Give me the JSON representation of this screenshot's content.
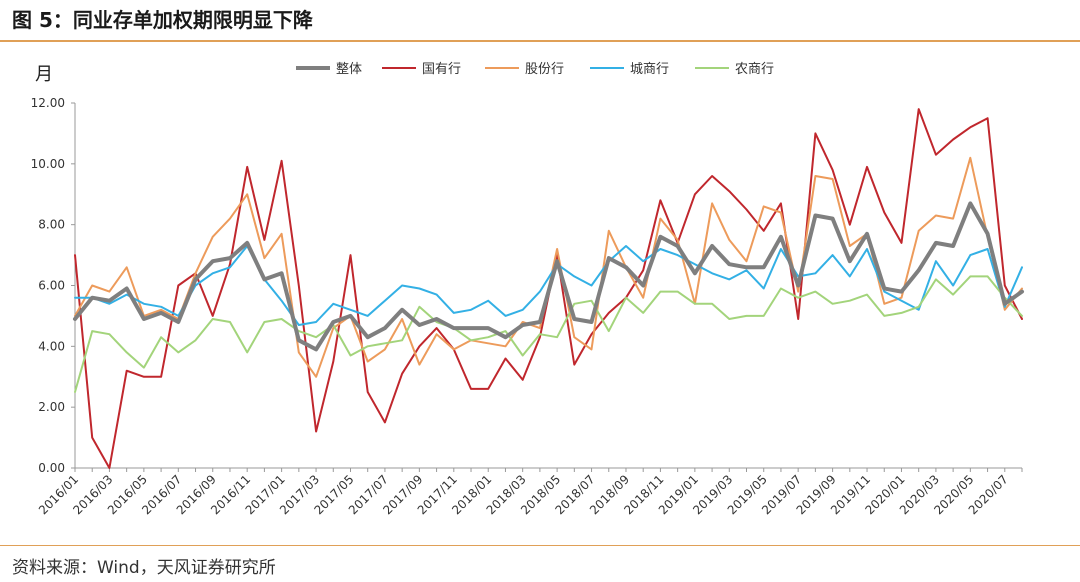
{
  "header": {
    "title": "图 5：同业存单加权期限明显下降"
  },
  "footer": {
    "source": "资料来源：Wind，天风证券研究所"
  },
  "chart_data": {
    "type": "line",
    "ylabel": "月",
    "ylim": [
      0,
      12
    ],
    "yticks": [
      "0.00",
      "2.00",
      "4.00",
      "6.00",
      "8.00",
      "10.00",
      "12.00"
    ],
    "grid": false,
    "legend": "top",
    "x": [
      "2016/01",
      "2016/02",
      "2016/03",
      "2016/04",
      "2016/05",
      "2016/06",
      "2016/07",
      "2016/08",
      "2016/09",
      "2016/10",
      "2016/11",
      "2016/12",
      "2017/01",
      "2017/02",
      "2017/03",
      "2017/04",
      "2017/05",
      "2017/06",
      "2017/07",
      "2017/08",
      "2017/09",
      "2017/10",
      "2017/11",
      "2017/12",
      "2018/01",
      "2018/02",
      "2018/03",
      "2018/04",
      "2018/05",
      "2018/06",
      "2018/07",
      "2018/08",
      "2018/09",
      "2018/10",
      "2018/11",
      "2018/12",
      "2019/01",
      "2019/02",
      "2019/03",
      "2019/04",
      "2019/05",
      "2019/06",
      "2019/07",
      "2019/08",
      "2019/09",
      "2019/10",
      "2019/11",
      "2019/12",
      "2020/01",
      "2020/02",
      "2020/03",
      "2020/04",
      "2020/05",
      "2020/06",
      "2020/07",
      "2020/08"
    ],
    "xtick_labels": [
      "2016/01",
      "2016/03",
      "2016/05",
      "2016/07",
      "2016/09",
      "2016/11",
      "2017/01",
      "2017/03",
      "2017/05",
      "2017/07",
      "2017/09",
      "2017/11",
      "2018/01",
      "2018/03",
      "2018/05",
      "2018/07",
      "2018/09",
      "2018/11",
      "2019/01",
      "2019/03",
      "2019/05",
      "2019/07",
      "2019/09",
      "2019/11",
      "2020/01",
      "2020/03",
      "2020/05",
      "2020/07"
    ],
    "series": [
      {
        "name": "整体",
        "color": "#7f7f7f",
        "width": 4,
        "values": [
          4.9,
          5.6,
          5.5,
          5.9,
          4.9,
          5.1,
          4.8,
          6.2,
          6.8,
          6.9,
          7.4,
          6.2,
          6.4,
          4.2,
          3.9,
          4.8,
          5.0,
          4.3,
          4.6,
          5.2,
          4.7,
          4.9,
          4.6,
          4.6,
          4.6,
          4.3,
          4.7,
          4.8,
          6.8,
          4.9,
          4.8,
          6.9,
          6.6,
          6.0,
          7.6,
          7.3,
          6.4,
          7.3,
          6.7,
          6.6,
          6.6,
          7.6,
          6.0,
          8.3,
          8.2,
          6.8,
          7.7,
          5.9,
          5.8,
          6.5,
          7.4,
          7.3,
          8.7,
          7.7,
          5.4,
          5.8
        ]
      },
      {
        "name": "国有行",
        "color": "#c0272d",
        "width": 2,
        "values": [
          7.0,
          1.0,
          0.0,
          3.2,
          3.0,
          3.0,
          6.0,
          6.4,
          5.0,
          6.7,
          9.9,
          7.5,
          10.1,
          6.0,
          1.2,
          3.5,
          7.0,
          2.5,
          1.5,
          3.1,
          4.0,
          4.6,
          3.9,
          2.6,
          2.6,
          3.6,
          2.9,
          4.3,
          7.0,
          3.4,
          4.4,
          5.1,
          5.6,
          6.5,
          8.8,
          7.4,
          9.0,
          9.6,
          9.1,
          8.5,
          7.8,
          8.7,
          4.9,
          11.0,
          9.8,
          8.0,
          9.9,
          8.4,
          7.4,
          11.8,
          10.3,
          10.8,
          11.2,
          11.5,
          6.0,
          4.9
        ]
      },
      {
        "name": "股份行",
        "color": "#ed9b5b",
        "width": 2,
        "values": [
          5.0,
          6.0,
          5.8,
          6.6,
          5.0,
          5.2,
          4.9,
          6.4,
          7.6,
          8.2,
          9.0,
          6.9,
          7.7,
          3.8,
          3.0,
          4.6,
          5.0,
          3.5,
          3.9,
          4.9,
          3.4,
          4.4,
          3.9,
          4.2,
          4.1,
          4.0,
          4.8,
          4.6,
          7.2,
          4.3,
          3.9,
          7.8,
          6.6,
          5.6,
          8.2,
          7.5,
          5.4,
          8.7,
          7.5,
          6.8,
          8.6,
          8.4,
          5.8,
          9.6,
          9.5,
          7.3,
          7.7,
          5.4,
          5.6,
          7.8,
          8.3,
          8.2,
          10.2,
          7.6,
          5.2,
          5.9
        ]
      },
      {
        "name": "城商行",
        "color": "#33b0e5",
        "width": 2,
        "values": [
          5.6,
          5.6,
          5.4,
          5.7,
          5.4,
          5.3,
          5.0,
          6.0,
          6.4,
          6.6,
          7.3,
          6.2,
          5.5,
          4.7,
          4.8,
          5.4,
          5.2,
          5.0,
          5.5,
          6.0,
          5.9,
          5.7,
          5.1,
          5.2,
          5.5,
          5.0,
          5.2,
          5.8,
          6.7,
          6.3,
          6.0,
          6.8,
          7.3,
          6.8,
          7.2,
          7.0,
          6.7,
          6.4,
          6.2,
          6.5,
          5.9,
          7.2,
          6.3,
          6.4,
          7.0,
          6.3,
          7.2,
          5.8,
          5.5,
          5.2,
          6.8,
          6.0,
          7.0,
          7.2,
          5.3,
          6.6
        ]
      },
      {
        "name": "农商行",
        "color": "#a3d47b",
        "width": 2,
        "values": [
          2.5,
          4.5,
          4.4,
          3.8,
          3.3,
          4.3,
          3.8,
          4.2,
          4.9,
          4.8,
          3.8,
          4.8,
          4.9,
          4.5,
          4.3,
          4.7,
          3.7,
          4.0,
          4.1,
          4.2,
          5.3,
          4.8,
          4.6,
          4.2,
          4.3,
          4.5,
          3.7,
          4.4,
          4.3,
          5.4,
          5.5,
          4.5,
          5.6,
          5.1,
          5.8,
          5.8,
          5.4,
          5.4,
          4.9,
          5.0,
          5.0,
          5.9,
          5.6,
          5.8,
          5.4,
          5.5,
          5.7,
          5.0,
          5.1,
          5.3,
          6.2,
          5.7,
          6.3,
          6.3,
          5.6,
          5.0
        ]
      }
    ]
  }
}
